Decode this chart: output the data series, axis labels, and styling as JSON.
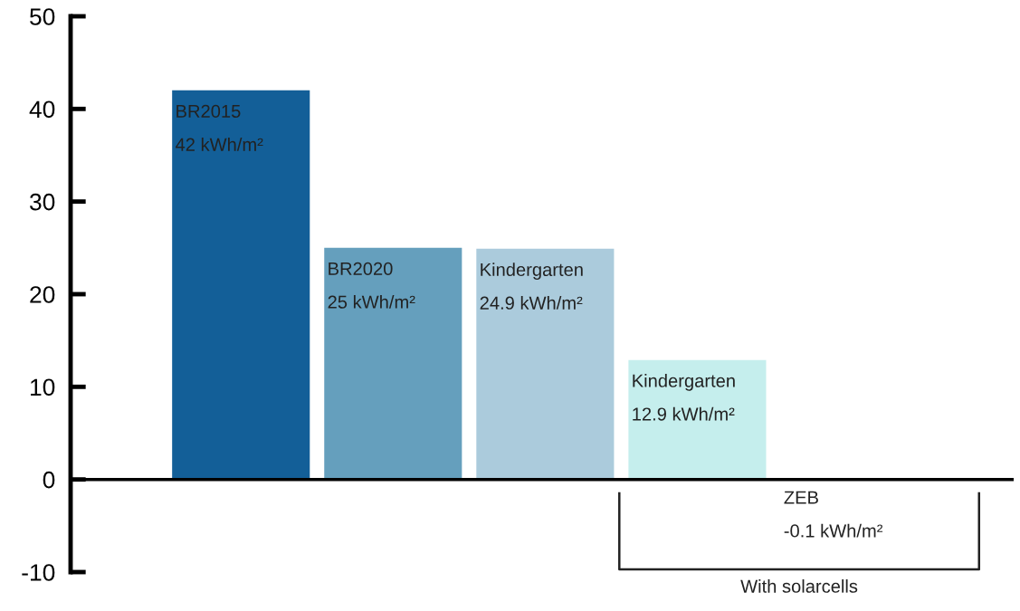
{
  "chart_data": {
    "type": "bar",
    "categories": [
      "BR2015",
      "BR2020",
      "Kindergarten",
      "Kindergarten",
      "ZEB"
    ],
    "values": [
      42,
      25,
      24.9,
      12.9,
      -0.1
    ],
    "value_labels": [
      "42 kWh/m²",
      "25 kWh/m²",
      "24.9 kWh/m²",
      "12.9 kWh/m²",
      "-0.1 kWh/m²"
    ],
    "colors": [
      "#135f98",
      "#659fbd",
      "#abcbdc",
      "#c5eeed",
      "#c9e9f2"
    ],
    "ylim": [
      -10,
      50
    ],
    "yticks": [
      -10,
      0,
      10,
      20,
      30,
      40,
      50
    ],
    "grid": false,
    "ref_lines": [
      {
        "axis": "y",
        "value": 0,
        "color": "#000000"
      }
    ],
    "legend": false,
    "annotations": [
      "With solarcells"
    ]
  }
}
